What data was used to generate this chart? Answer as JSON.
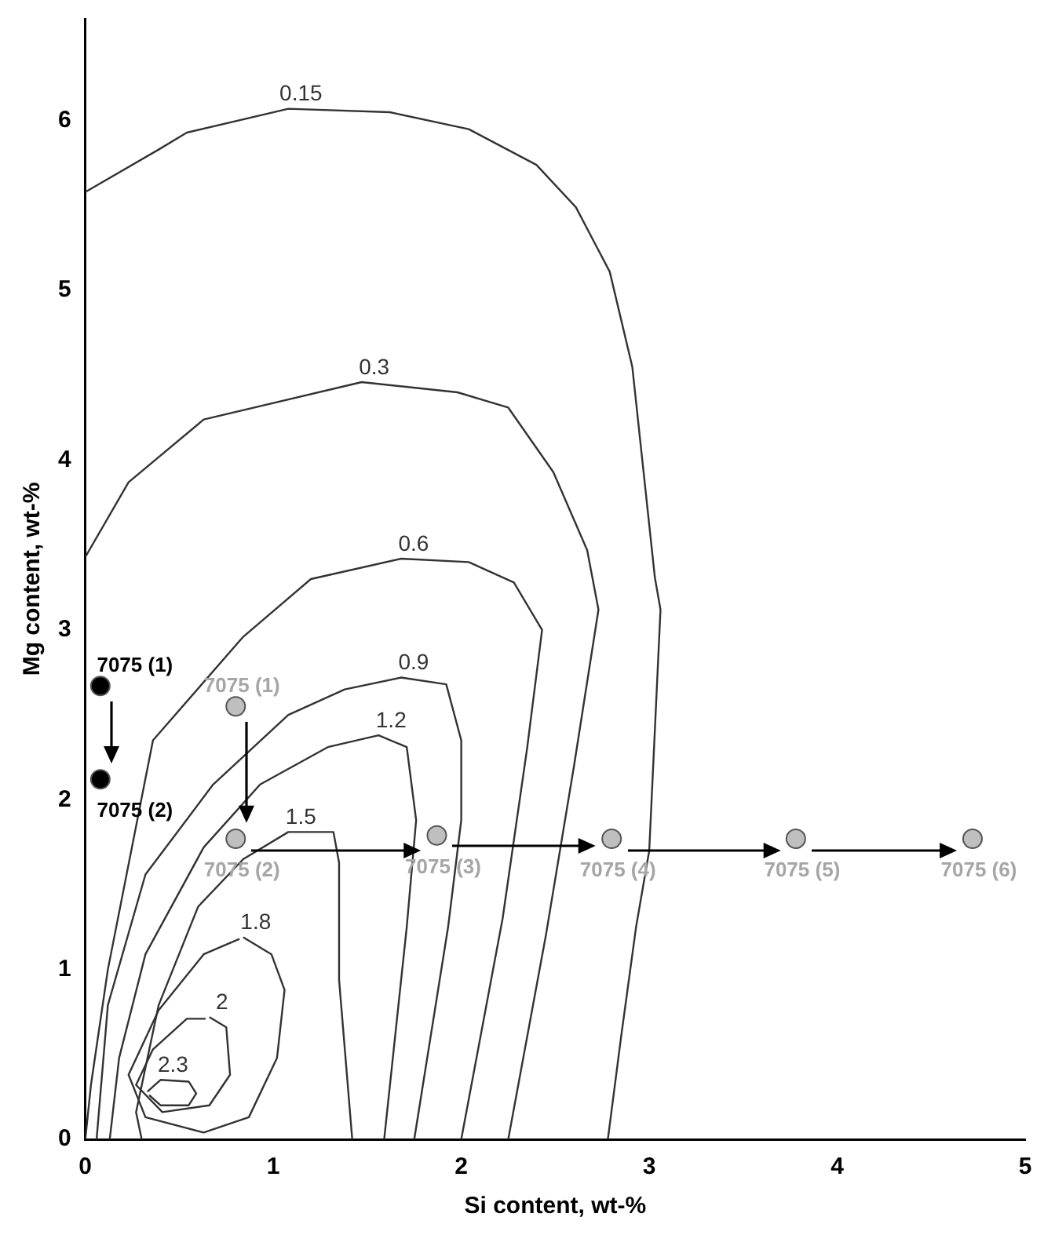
{
  "chart_data": {
    "type": "scatter",
    "xlabel": "Si content, wt-%",
    "ylabel": "Mg content, wt-%",
    "xlim": [
      0,
      5
    ],
    "xticks": [
      0,
      1,
      2,
      3,
      4,
      5
    ],
    "ylim": [
      0,
      6.6
    ],
    "yticks": [
      0,
      1,
      2,
      3,
      4,
      5,
      6
    ],
    "grid": false,
    "legend": false,
    "series": [
      {
        "type": "line",
        "name": "0.15",
        "marker": "none",
        "color": "#333333",
        "x": [
          0,
          0.39,
          0.54,
          1.08,
          1.62,
          2.04,
          2.4,
          2.61,
          2.79,
          2.91,
          2.97,
          3.03,
          3.06,
          3.0,
          2.93,
          2.85,
          2.78
        ],
        "values": [
          5.58,
          5.83,
          5.93,
          6.07,
          6.05,
          5.95,
          5.74,
          5.49,
          5.11,
          4.55,
          3.93,
          3.31,
          3.12,
          1.7,
          1.25,
          0.6,
          0
        ]
      },
      {
        "type": "line",
        "name": "0.3",
        "marker": "none",
        "color": "#333333",
        "x": [
          0,
          0.23,
          0.63,
          1.47,
          1.98,
          2.25,
          2.49,
          2.67,
          2.73,
          2.6,
          2.45,
          2.25
        ],
        "values": [
          3.43,
          3.87,
          4.24,
          4.46,
          4.4,
          4.31,
          3.93,
          3.47,
          3.12,
          2.2,
          1.2,
          0
        ]
      },
      {
        "type": "line",
        "name": "0.6",
        "marker": "none",
        "color": "#333333",
        "x": [
          0,
          0.03,
          0.12,
          0.36,
          0.84,
          1.2,
          1.68,
          2.04,
          2.28,
          2.43,
          2.35,
          2.22,
          2.0
        ],
        "values": [
          0,
          0.32,
          1.0,
          2.35,
          2.96,
          3.3,
          3.42,
          3.4,
          3.28,
          3.0,
          2.3,
          1.3,
          0
        ]
      },
      {
        "type": "line",
        "name": "0.9",
        "marker": "none",
        "color": "#333333",
        "x": [
          0.06,
          0.12,
          0.32,
          0.68,
          1.08,
          1.38,
          1.68,
          1.92,
          2.0,
          2.0,
          1.93,
          1.75
        ],
        "values": [
          0,
          0.79,
          1.56,
          2.09,
          2.5,
          2.65,
          2.72,
          2.68,
          2.35,
          1.88,
          1.25,
          0
        ]
      },
      {
        "type": "line",
        "name": "1.2",
        "marker": "none",
        "color": "#333333",
        "x": [
          0.13,
          0.18,
          0.32,
          0.63,
          0.93,
          1.29,
          1.56,
          1.71,
          1.76,
          1.71,
          1.59
        ],
        "values": [
          0,
          0.48,
          1.09,
          1.72,
          2.09,
          2.31,
          2.38,
          2.31,
          1.88,
          1.25,
          0
        ]
      },
      {
        "type": "line",
        "name": "1.5",
        "marker": "none",
        "color": "#333333",
        "x": [
          0.3,
          0.27,
          0.39,
          0.6,
          0.84,
          1.08,
          1.32,
          1.35,
          1.35,
          1.42
        ],
        "values": [
          0,
          0.16,
          0.79,
          1.37,
          1.65,
          1.81,
          1.81,
          1.63,
          0.94,
          0
        ]
      },
      {
        "type": "line",
        "name": "1.8",
        "marker": "none",
        "color": "#333333",
        "x": [
          0.84,
          0.99,
          1.06,
          1.02,
          0.87,
          0.63,
          0.32,
          0.23,
          0.39,
          0.63,
          0.82
        ],
        "values": [
          1.19,
          1.09,
          0.88,
          0.48,
          0.13,
          0.04,
          0.13,
          0.38,
          0.76,
          1.09,
          1.18
        ]
      },
      {
        "type": "line",
        "name": "2",
        "marker": "none",
        "color": "#333333",
        "x": [
          0.66,
          0.75,
          0.77,
          0.66,
          0.41,
          0.27,
          0.36,
          0.54,
          0.64
        ],
        "values": [
          0.72,
          0.66,
          0.38,
          0.2,
          0.16,
          0.32,
          0.53,
          0.71,
          0.71
        ]
      },
      {
        "type": "line",
        "name": "2.3",
        "marker": "none",
        "color": "#333333",
        "x": [
          0.33,
          0.4,
          0.55,
          0.59,
          0.55,
          0.4,
          0.34
        ],
        "values": [
          0.28,
          0.35,
          0.34,
          0.27,
          0.2,
          0.2,
          0.26
        ]
      },
      {
        "type": "scatter",
        "marker": "circle",
        "color": "#000000",
        "x": [
          0.08,
          0.08
        ],
        "values": [
          2.67,
          2.12
        ],
        "value_labels": [
          "7075 (1)",
          "7075 (2)"
        ]
      },
      {
        "type": "scatter",
        "marker": "circle",
        "color": "#bfbfbf",
        "x": [
          0.8,
          0.8,
          1.87,
          2.8,
          3.78,
          4.72
        ],
        "values": [
          2.55,
          1.77,
          1.79,
          1.77,
          1.77,
          1.77
        ],
        "value_labels": [
          "7075 (1)",
          "7075 (2)",
          "7075 (3)",
          "7075 (4)",
          "7075 (5)",
          "7075 (6)"
        ]
      }
    ]
  }
}
